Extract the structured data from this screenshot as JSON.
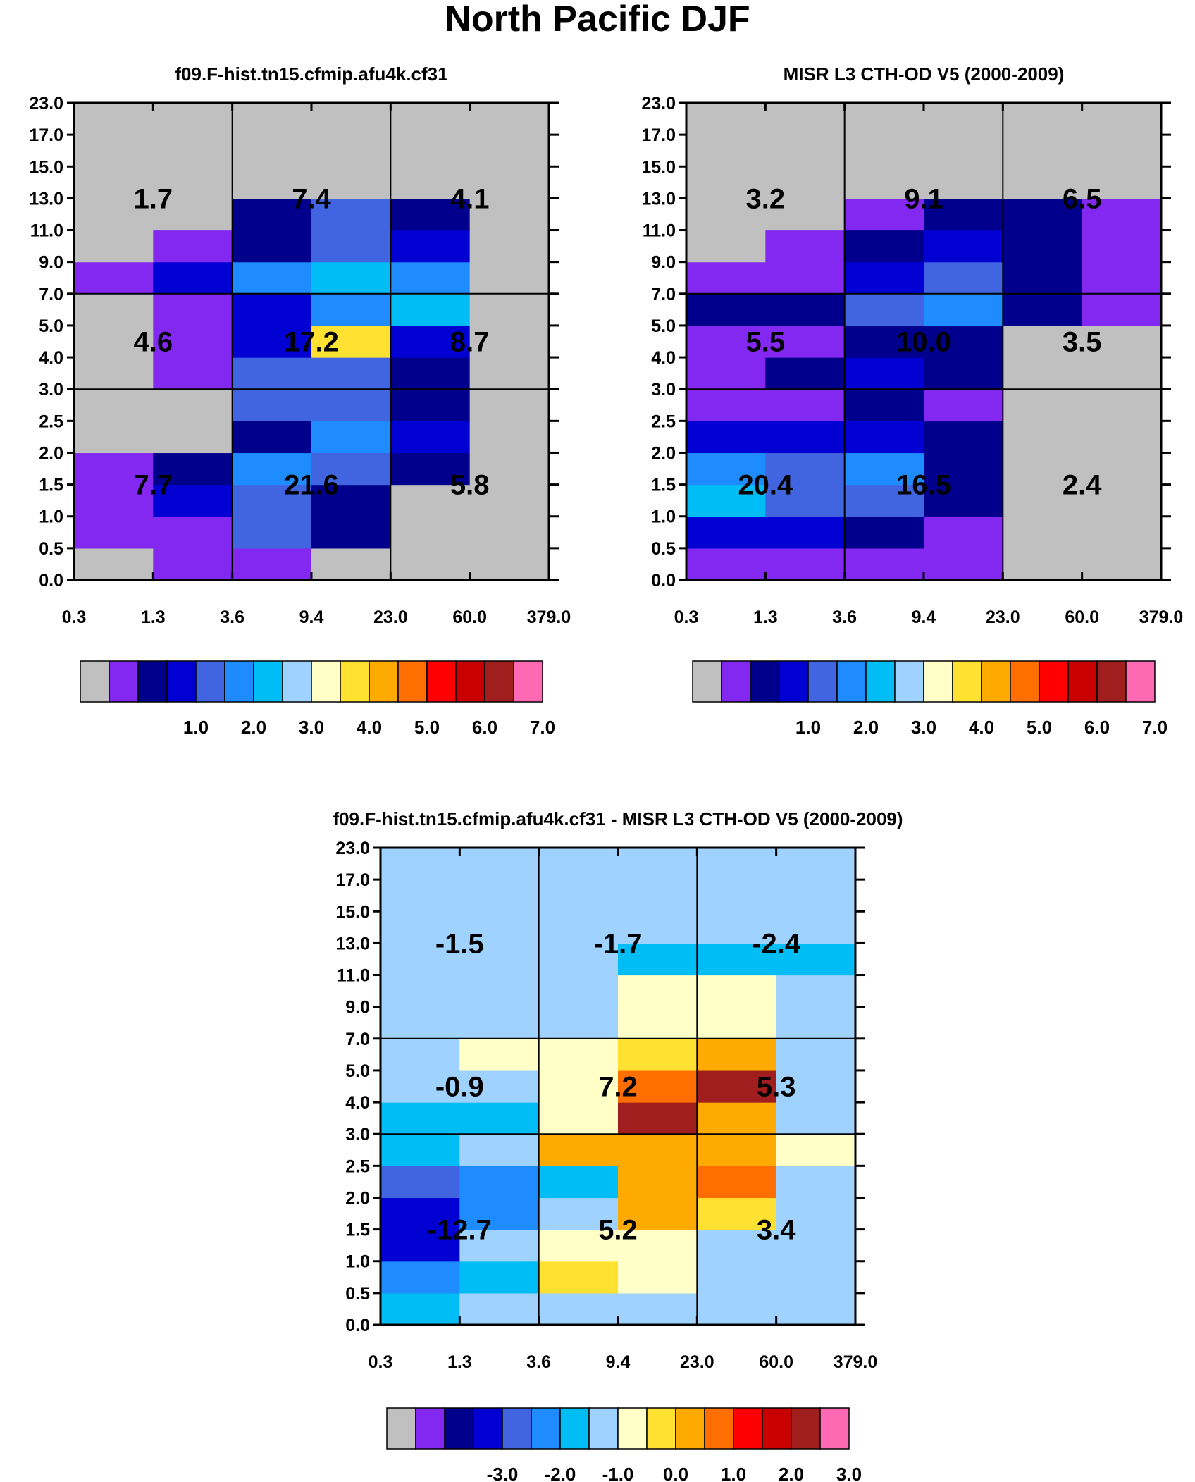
{
  "figure_title": "North Pacific DJF",
  "x_tick_labels": [
    "0.3",
    "1.3",
    "3.6",
    "9.4",
    "23.0",
    "60.0",
    "379.0"
  ],
  "y_tick_labels": [
    "0.0",
    "0.5",
    "1.0",
    "1.5",
    "2.0",
    "2.5",
    "3.0",
    "4.0",
    "5.0",
    "7.0",
    "9.0",
    "11.0",
    "13.0",
    "15.0",
    "17.0",
    "23.0"
  ],
  "colors": {
    "abs_palette": [
      "#c0c0c0",
      "#8228f0",
      "#00008c",
      "#0000d2",
      "#4164e1",
      "#1e8cff",
      "#00bef5",
      "#a0d2ff",
      "#ffffc8",
      "#ffe132",
      "#ffaa00",
      "#ff6e00",
      "#ff0000",
      "#c80000",
      "#a01e1e",
      "#ff69b4"
    ],
    "diff_palette": [
      "#c0c0c0",
      "#8228f0",
      "#00008c",
      "#0000d2",
      "#4164e1",
      "#1e8cff",
      "#00bef5",
      "#a0d2ff",
      "#ffffc8",
      "#ffe132",
      "#ffaa00",
      "#ff6e00",
      "#ff0000",
      "#c80000",
      "#a01e1e",
      "#ff69b4"
    ]
  },
  "chart_data": [
    {
      "type": "heatmap",
      "title": "f09.F-hist.tn15.cfmip.afu4k.cf31",
      "x_bins": [
        "0.3",
        "1.3",
        "3.6",
        "9.4",
        "23.0",
        "60.0",
        "379.0"
      ],
      "y_bins": [
        "0.0",
        "0.5",
        "1.0",
        "1.5",
        "2.0",
        "2.5",
        "3.0",
        "4.0",
        "5.0",
        "7.0",
        "9.0",
        "11.0",
        "13.0",
        "15.0",
        "17.0",
        "23.0"
      ],
      "colorbar_ticks": [
        "1.0",
        "2.0",
        "3.0",
        "4.0",
        "5.0",
        "6.0",
        "7.0"
      ],
      "cell_color_index": [
        [
          0,
          1,
          1,
          0,
          0,
          0
        ],
        [
          1,
          1,
          4,
          2,
          0,
          0
        ],
        [
          1,
          3,
          4,
          2,
          0,
          0
        ],
        [
          1,
          2,
          5,
          4,
          2,
          0
        ],
        [
          0,
          0,
          2,
          5,
          3,
          0
        ],
        [
          0,
          0,
          4,
          4,
          2,
          0
        ],
        [
          0,
          1,
          4,
          4,
          2,
          0
        ],
        [
          0,
          1,
          3,
          9,
          3,
          0
        ],
        [
          0,
          1,
          3,
          5,
          6,
          0
        ],
        [
          1,
          3,
          5,
          6,
          5,
          0
        ],
        [
          0,
          1,
          2,
          4,
          3,
          0
        ],
        [
          0,
          0,
          2,
          4,
          2,
          0
        ],
        [
          0,
          0,
          0,
          0,
          0,
          0
        ],
        [
          0,
          0,
          0,
          0,
          0,
          0
        ],
        [
          0,
          0,
          0,
          0,
          0,
          0
        ]
      ],
      "box_values": [
        [
          "7.7",
          "21.6",
          "5.8"
        ],
        [
          "4.6",
          "17.2",
          "8.7"
        ],
        [
          "1.7",
          "7.4",
          "4.1"
        ]
      ]
    },
    {
      "type": "heatmap",
      "title": "MISR L3 CTH-OD V5 (2000-2009)",
      "x_bins": [
        "0.3",
        "1.3",
        "3.6",
        "9.4",
        "23.0",
        "60.0",
        "379.0"
      ],
      "y_bins": [
        "0.0",
        "0.5",
        "1.0",
        "1.5",
        "2.0",
        "2.5",
        "3.0",
        "4.0",
        "5.0",
        "7.0",
        "9.0",
        "11.0",
        "13.0",
        "15.0",
        "17.0",
        "23.0"
      ],
      "colorbar_ticks": [
        "1.0",
        "2.0",
        "3.0",
        "4.0",
        "5.0",
        "6.0",
        "7.0"
      ],
      "cell_color_index": [
        [
          1,
          1,
          1,
          1,
          0,
          0
        ],
        [
          3,
          3,
          2,
          1,
          0,
          0
        ],
        [
          6,
          4,
          4,
          2,
          0,
          0
        ],
        [
          5,
          4,
          5,
          2,
          0,
          0
        ],
        [
          3,
          3,
          3,
          2,
          0,
          0
        ],
        [
          1,
          1,
          2,
          1,
          0,
          0
        ],
        [
          1,
          2,
          3,
          2,
          0,
          0
        ],
        [
          1,
          1,
          2,
          2,
          0,
          0
        ],
        [
          2,
          2,
          4,
          5,
          2,
          1
        ],
        [
          1,
          1,
          3,
          4,
          2,
          1
        ],
        [
          0,
          1,
          2,
          3,
          2,
          1
        ],
        [
          0,
          0,
          1,
          2,
          2,
          1
        ],
        [
          0,
          0,
          0,
          0,
          0,
          0
        ],
        [
          0,
          0,
          0,
          0,
          0,
          0
        ],
        [
          0,
          0,
          0,
          0,
          0,
          0
        ]
      ],
      "box_values": [
        [
          "20.4",
          "16.5",
          "2.4"
        ],
        [
          "5.5",
          "10.0",
          "3.5"
        ],
        [
          "3.2",
          "9.1",
          "6.5"
        ]
      ]
    },
    {
      "type": "heatmap",
      "title": "f09.F-hist.tn15.cfmip.afu4k.cf31 - MISR L3 CTH-OD V5 (2000-2009)",
      "x_bins": [
        "0.3",
        "1.3",
        "3.6",
        "9.4",
        "23.0",
        "60.0",
        "379.0"
      ],
      "y_bins": [
        "0.0",
        "0.5",
        "1.0",
        "1.5",
        "2.0",
        "2.5",
        "3.0",
        "4.0",
        "5.0",
        "7.0",
        "9.0",
        "11.0",
        "13.0",
        "15.0",
        "17.0",
        "23.0"
      ],
      "colorbar_ticks": [
        "-3.0",
        "-2.0",
        "-1.0",
        "0.0",
        "1.0",
        "2.0",
        "3.0"
      ],
      "cell_color_index": [
        [
          6,
          7,
          7,
          7,
          7,
          7
        ],
        [
          5,
          6,
          9,
          8,
          7,
          7
        ],
        [
          3,
          7,
          8,
          8,
          7,
          7
        ],
        [
          3,
          5,
          7,
          10,
          9,
          7
        ],
        [
          4,
          5,
          6,
          10,
          11,
          7
        ],
        [
          6,
          7,
          10,
          10,
          10,
          8
        ],
        [
          6,
          6,
          8,
          14,
          10,
          7
        ],
        [
          7,
          7,
          8,
          11,
          14,
          7
        ],
        [
          7,
          8,
          8,
          9,
          10,
          7
        ],
        [
          7,
          7,
          7,
          8,
          8,
          7
        ],
        [
          7,
          7,
          7,
          8,
          8,
          7
        ],
        [
          7,
          7,
          7,
          6,
          6,
          6
        ],
        [
          7,
          7,
          7,
          7,
          7,
          7
        ],
        [
          7,
          7,
          7,
          7,
          7,
          7
        ],
        [
          7,
          7,
          7,
          7,
          7,
          7
        ]
      ],
      "box_values": [
        [
          "-12.7",
          "5.2",
          "3.4"
        ],
        [
          "-0.9",
          "7.2",
          "5.3"
        ],
        [
          "-1.5",
          "-1.7",
          "-2.4"
        ]
      ]
    }
  ]
}
